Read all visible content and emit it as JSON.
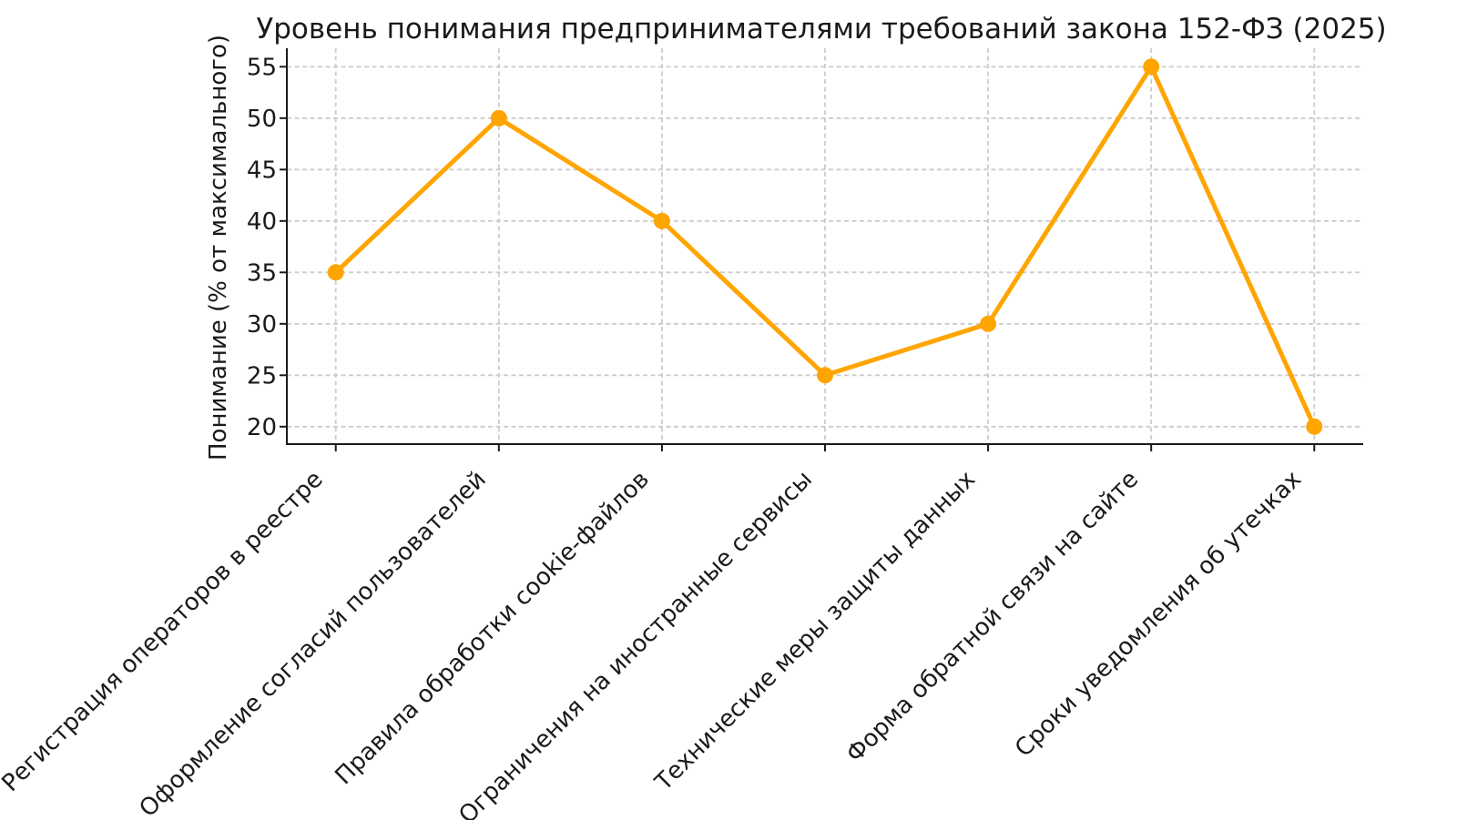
{
  "chart_data": {
    "type": "line",
    "title": "Уровень понимания предпринимателями требований закона 152-ФЗ (2025)",
    "xlabel": "",
    "ylabel": "Понимание (% от максимального)",
    "categories": [
      "Регистрация операторов в реестре",
      "Оформление согласий пользователей",
      "Правила обработки cookie-файлов",
      "Ограничения на иностранные сервисы",
      "Технические меры защиты данных",
      "Форма обратной связи на сайте",
      "Сроки уведомления об утечках"
    ],
    "values": [
      35,
      50,
      40,
      25,
      30,
      55,
      20
    ],
    "yticks": [
      20,
      25,
      30,
      35,
      40,
      45,
      50,
      55
    ],
    "ylim": [
      18.3,
      56.8
    ],
    "grid": true,
    "grid_linestyle": "dashed",
    "legend_position": "none",
    "x_tick_rotation_deg": 45,
    "line_color": "#FFA500",
    "marker": "circle",
    "background_color": "#ffffff",
    "grid_color": "#cccccc",
    "text_color": "#1a1a1a"
  }
}
